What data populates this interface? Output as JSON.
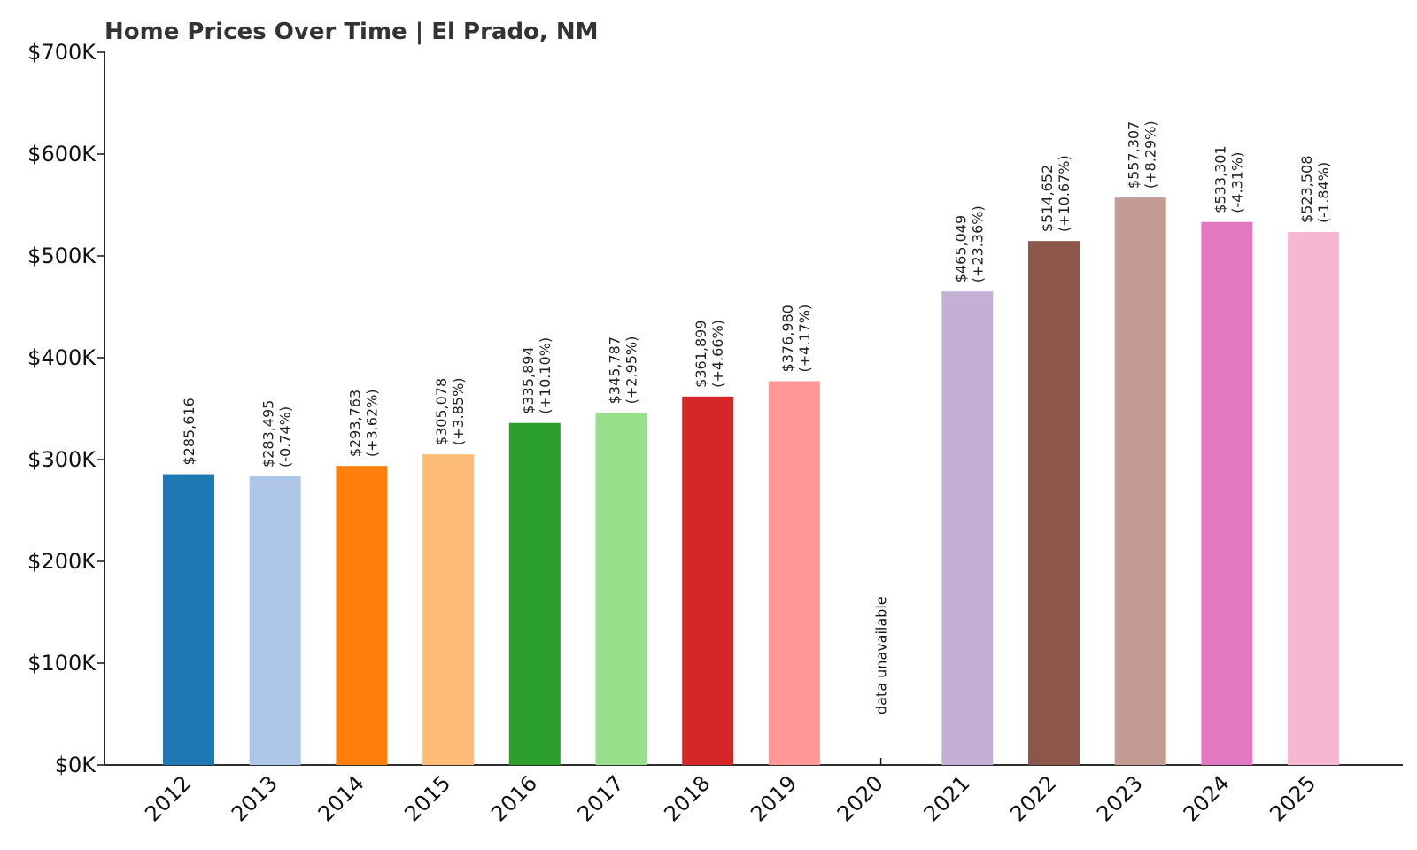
{
  "chart_data": {
    "type": "bar",
    "title": "Home Prices Over Time | El Prado, NM",
    "xlabel": "",
    "ylabel": "",
    "ylim": [
      0,
      700000
    ],
    "yticks": [
      0,
      100000,
      200000,
      300000,
      400000,
      500000,
      600000,
      700000
    ],
    "ytick_labels": [
      "$0K",
      "$100K",
      "$200K",
      "$300K",
      "$400K",
      "$500K",
      "$600K",
      "$700K"
    ],
    "grid": false,
    "categories": [
      "2012",
      "2013",
      "2014",
      "2015",
      "2016",
      "2017",
      "2018",
      "2019",
      "2020",
      "2021",
      "2022",
      "2023",
      "2024",
      "2025"
    ],
    "values": [
      285616,
      283495,
      293763,
      305078,
      335894,
      345787,
      361899,
      376980,
      null,
      465049,
      514652,
      557307,
      533301,
      523508
    ],
    "value_labels": [
      "$285,616",
      "$283,495",
      "$293,763",
      "$305,078",
      "$335,894",
      "$345,787",
      "$361,899",
      "$376,980",
      "",
      "$465,049",
      "$514,652",
      "$557,307",
      "$533,301",
      "$523,508"
    ],
    "change_labels": [
      "",
      "(-0.74%)",
      "(+3.62%)",
      "(+3.85%)",
      "(+10.10%)",
      "(+2.95%)",
      "(+4.66%)",
      "(+4.17%)",
      "",
      "(+23.36%)",
      "(+10.67%)",
      "(+8.29%)",
      "(-4.31%)",
      "(-1.84%)"
    ],
    "missing_label": "data unavailable",
    "colors": [
      "#1f77b4",
      "#aec7e8",
      "#ff7f0e",
      "#ffbb78",
      "#2ca02c",
      "#98df8a",
      "#d62728",
      "#ff9896",
      "#9467bd",
      "#c5b0d5",
      "#8c564b",
      "#c49c94",
      "#e377c2",
      "#f7b6d2"
    ]
  }
}
